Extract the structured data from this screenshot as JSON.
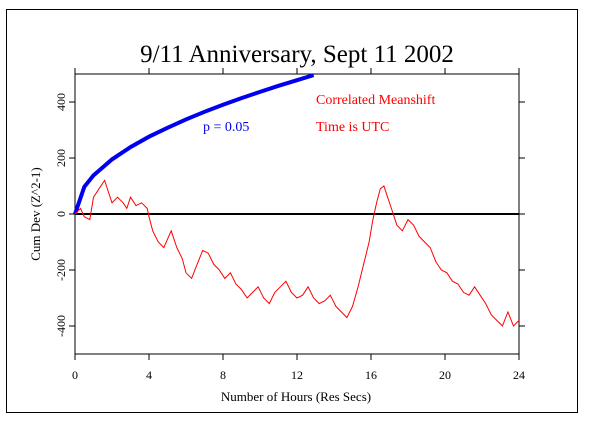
{
  "chart_data": {
    "type": "line",
    "title": "9/11 Anniversary, Sept 11 2002",
    "xlabel": "Number of Hours (Res Secs)",
    "ylabel": "Cum Dev (Z^2-1)",
    "xlim": [
      0,
      24
    ],
    "ylim": [
      -500,
      500
    ],
    "x_ticks": [
      "0",
      "4",
      "8",
      "12",
      "16",
      "20",
      "24"
    ],
    "y_ticks": [
      "-400",
      "-200",
      "0",
      "200",
      "400"
    ],
    "annotations": {
      "p_label": "p = 0.05",
      "meanshift": "Correlated Meanshift",
      "time_note": "Time is UTC"
    },
    "colors": {
      "data": "#ff0000",
      "envelope": "#0000ee",
      "baseline": "#000000"
    },
    "series": [
      {
        "style": "red-noisy",
        "x": [
          0,
          0.3,
          0.5,
          0.8,
          1.0,
          1.3,
          1.6,
          1.8,
          2.0,
          2.3,
          2.6,
          2.8,
          3.0,
          3.3,
          3.6,
          3.9,
          4.0,
          4.2,
          4.5,
          4.8,
          5.0,
          5.2,
          5.5,
          5.8,
          6.0,
          6.3,
          6.6,
          6.9,
          7.2,
          7.5,
          7.8,
          8.1,
          8.4,
          8.7,
          9.0,
          9.3,
          9.6,
          9.9,
          10.2,
          10.5,
          10.8,
          11.1,
          11.4,
          11.7,
          12.0,
          12.3,
          12.6,
          12.9,
          13.2,
          13.5,
          13.8,
          14.1,
          14.4,
          14.7,
          15.0,
          15.3,
          15.6,
          15.9,
          16.1,
          16.3,
          16.5,
          16.7,
          16.9,
          17.1,
          17.4,
          17.7,
          18.0,
          18.3,
          18.6,
          18.9,
          19.2,
          19.5,
          19.8,
          20.1,
          20.4,
          20.7,
          21.0,
          21.3,
          21.6,
          21.9,
          22.2,
          22.5,
          22.8,
          23.1,
          23.4,
          23.7,
          24.0
        ],
        "y": [
          0,
          20,
          -10,
          -20,
          60,
          90,
          120,
          80,
          40,
          60,
          40,
          20,
          60,
          30,
          40,
          20,
          -10,
          -60,
          -100,
          -120,
          -90,
          -60,
          -120,
          -160,
          -210,
          -230,
          -180,
          -130,
          -140,
          -180,
          -200,
          -230,
          -210,
          -250,
          -270,
          -300,
          -280,
          -260,
          -300,
          -320,
          -280,
          -260,
          -240,
          -280,
          -300,
          -290,
          -260,
          -300,
          -320,
          -310,
          -290,
          -330,
          -350,
          -370,
          -330,
          -260,
          -180,
          -100,
          -20,
          40,
          90,
          100,
          60,
          20,
          -40,
          -60,
          -20,
          -40,
          -80,
          -100,
          -120,
          -170,
          -200,
          -210,
          -240,
          -250,
          -280,
          -290,
          -260,
          -290,
          -320,
          -360,
          -380,
          -400,
          -350,
          -400,
          -380
        ]
      },
      {
        "style": "blue-envelope",
        "name": "p = 0.05",
        "x": [
          0,
          0.5,
          1,
          2,
          3,
          4,
          5,
          6,
          7,
          8,
          9,
          10,
          11,
          12,
          12.9
        ],
        "y": [
          0,
          97,
          138,
          195,
          239,
          276,
          308,
          338,
          365,
          390,
          414,
          436,
          458,
          478,
          496
        ]
      }
    ]
  }
}
